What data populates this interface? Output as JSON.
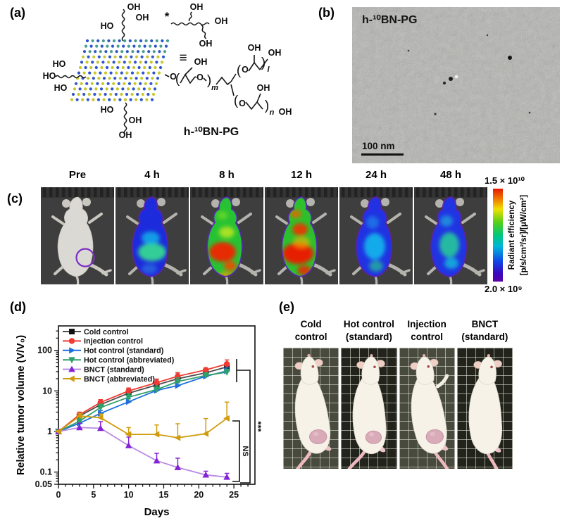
{
  "panels": {
    "a": {
      "label": "(a)",
      "compound": "h-¹⁰BN-PG",
      "oh": "OH",
      "ho": "HO",
      "o": "O",
      "star": "*",
      "equiv": "≡",
      "paren_open": "(",
      "paren_close": ")",
      "sub_m": "m",
      "sub_l": "l",
      "sub_n": "n"
    },
    "b": {
      "label": "(b)",
      "title": "h-¹⁰BN-PG",
      "scale_bar": "100 nm"
    },
    "c": {
      "label": "(c)",
      "timepoints": [
        "Pre",
        "4 h",
        "8 h",
        "12 h",
        "24 h",
        "48 h"
      ],
      "colorbar": {
        "max": "1.5 × 10¹⁰",
        "min": "2.0 × 10⁹",
        "label_line1": "Radiant efficiency",
        "label_line2": "[p/s/cm²/sr]/[μW/cm²]"
      }
    },
    "d": {
      "label": "(d)"
    },
    "e": {
      "label": "(e)",
      "photo_labels": [
        {
          "line1": "Cold",
          "line2": "control"
        },
        {
          "line1": "Hot control",
          "line2": "(standard)"
        },
        {
          "line1": "Injection",
          "line2": "control"
        },
        {
          "line1": "BNCT",
          "line2": "(standard)"
        }
      ]
    }
  },
  "chart_data": {
    "type": "line",
    "xlabel": "Days",
    "ylabel": "Relative tumor volume (V/V₀)",
    "yscale": "log",
    "xlim": [
      0,
      28
    ],
    "ylim": [
      0.05,
      400
    ],
    "xticks": [
      0,
      5,
      10,
      15,
      20,
      25
    ],
    "yticks": [
      0.05,
      0.1,
      1,
      10,
      100
    ],
    "ytick_labels": [
      "0.05",
      "0.1",
      "1",
      "10",
      "100"
    ],
    "x": [
      0,
      3,
      6,
      10,
      14,
      17,
      21,
      24
    ],
    "series": [
      {
        "name": "Cold control",
        "marker": "square",
        "color": "#111111",
        "line_color": "#4d4d4d",
        "values": [
          1,
          2.4,
          4.6,
          8.8,
          14,
          20,
          28,
          39
        ],
        "err_up": [
          0.05,
          0.35,
          1.0,
          2.2,
          5.5,
          8,
          6,
          9
        ]
      },
      {
        "name": "Injection control",
        "marker": "circle",
        "color": "#ee3b33",
        "line_color": "#ee3b33",
        "values": [
          1,
          2.6,
          5.2,
          10,
          16,
          23,
          33,
          46
        ],
        "err_up": [
          0.05,
          0.4,
          0.9,
          1.8,
          3.5,
          5,
          4,
          12
        ]
      },
      {
        "name": "Hot control (standard)",
        "marker": "triangle-right",
        "color": "#1e6fdd",
        "line_color": "#1e6fdd",
        "values": [
          1,
          1.6,
          2.8,
          5.4,
          10.3,
          13.5,
          23,
          31
        ],
        "err_up": [
          0.05,
          0.25,
          0.5,
          1.0,
          2.0,
          2.5,
          4,
          6
        ]
      },
      {
        "name": "Hot control (abbreviated)",
        "marker": "triangle-down",
        "color": "#2fa06a",
        "line_color": "#2fa06a",
        "values": [
          1,
          1.8,
          3.9,
          7.0,
          10.8,
          17,
          24,
          29
        ],
        "err_up": [
          0.05,
          0.3,
          0.8,
          1.5,
          2.5,
          4,
          4,
          5
        ]
      },
      {
        "name": "BNCT (standard)",
        "marker": "triangle-up",
        "color": "#8323d6",
        "line_color": "#b98ae4",
        "values": [
          1,
          1.25,
          1.2,
          0.45,
          0.19,
          0.13,
          0.085,
          0.075
        ],
        "err_up": [
          0.05,
          0.35,
          0.55,
          0.28,
          0.1,
          0.09,
          0.02,
          0.018
        ]
      },
      {
        "name": "BNCT (abbreviated)",
        "marker": "triangle-left",
        "color": "#cf9c0e",
        "line_color": "#cf9c0e",
        "values": [
          1,
          2.4,
          2.2,
          0.85,
          0.85,
          0.7,
          0.88,
          2.1
        ],
        "err_up": [
          0.05,
          0.4,
          0.5,
          0.4,
          0.6,
          0.85,
          1.2,
          3.2
        ]
      }
    ],
    "legend_position": "top-left-inside",
    "grid": false,
    "annotations": [
      {
        "text": "***"
      },
      {
        "text": "NS"
      }
    ]
  }
}
